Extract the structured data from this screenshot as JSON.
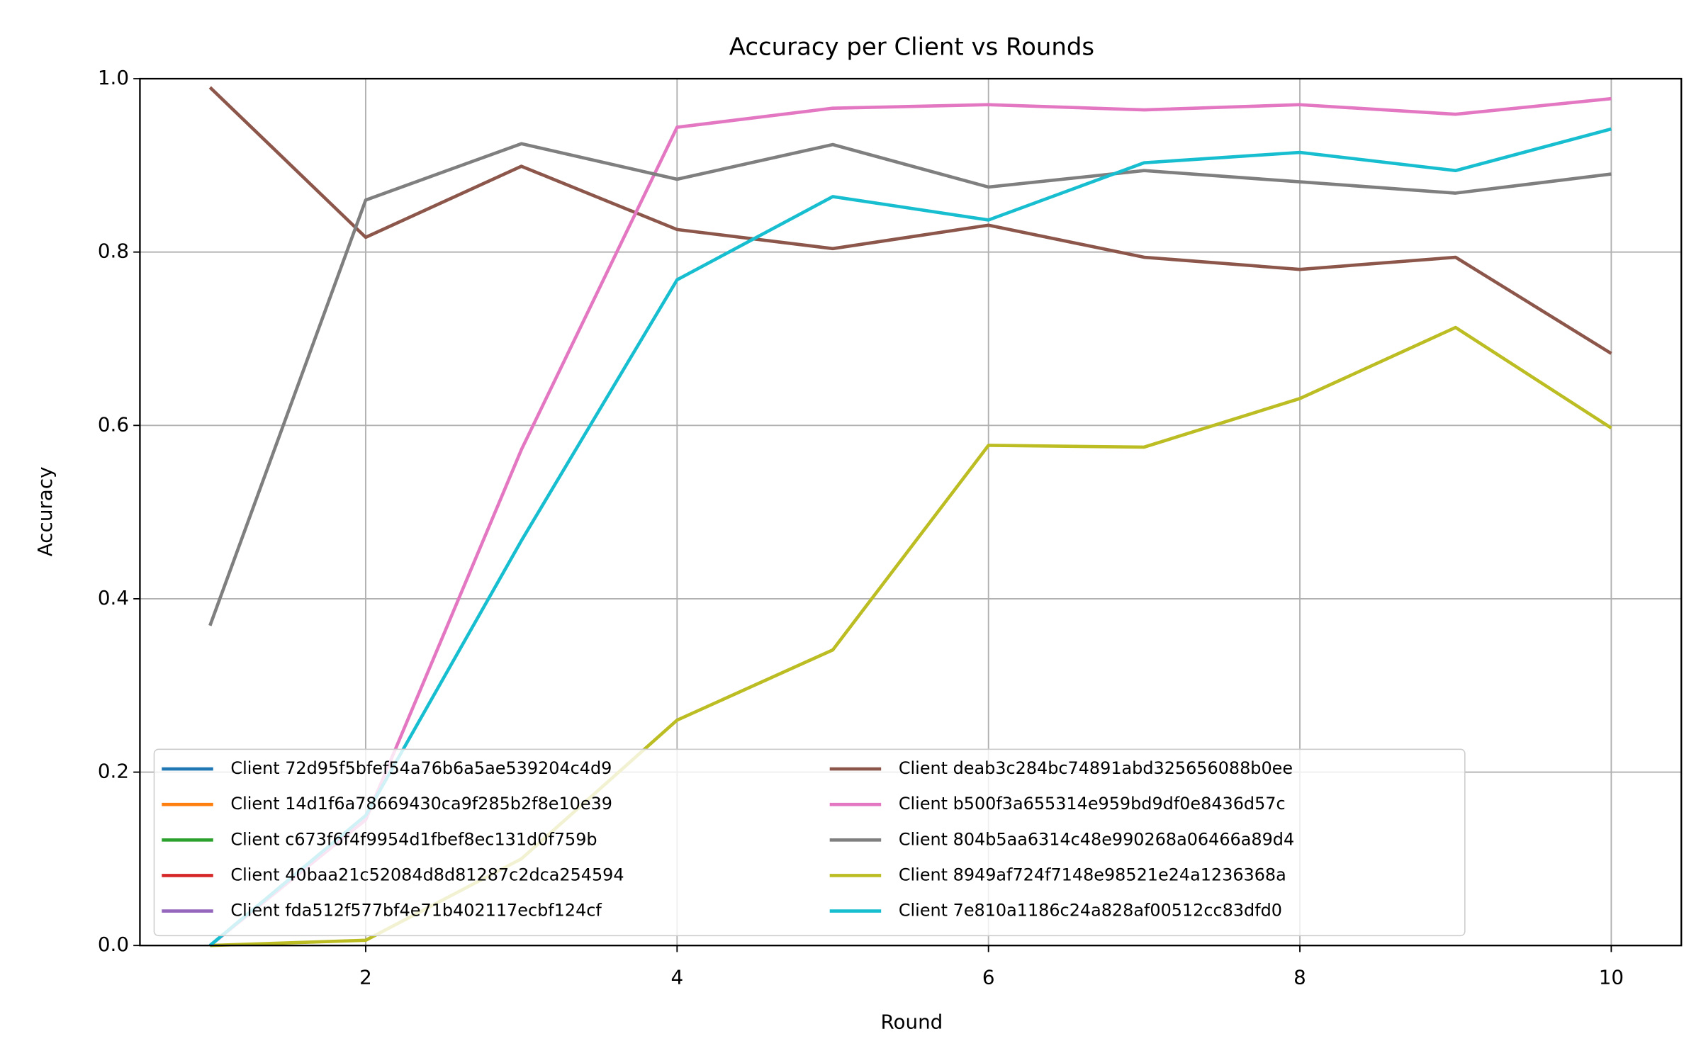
{
  "chart_data": {
    "type": "line",
    "title": "Accuracy per Client vs Rounds",
    "xlabel": "Round",
    "ylabel": "Accuracy",
    "x": [
      1,
      2,
      3,
      4,
      5,
      6,
      7,
      8,
      9,
      10
    ],
    "xlim": [
      0.55,
      10.45
    ],
    "xticks": [
      2,
      4,
      6,
      8,
      10
    ],
    "ylim": [
      0,
      1
    ],
    "yticks": [
      {
        "value": 0,
        "label": "0.0"
      },
      {
        "value": 0.2,
        "label": "0.2"
      },
      {
        "value": 0.4,
        "label": "0.4"
      },
      {
        "value": 0.6,
        "label": "0.6"
      },
      {
        "value": 0.8,
        "label": "0.8"
      },
      {
        "value": 1,
        "label": "1.0"
      }
    ],
    "grid": true,
    "legend": "lower left",
    "legend_columns": 2,
    "series": [
      {
        "name": "Client 72d95f5bfef54a76b6a5ae539204c4d9",
        "color": "#1f77b4",
        "values": [
          null,
          null,
          null,
          null,
          null,
          null,
          null,
          null,
          null,
          null
        ]
      },
      {
        "name": "Client 14d1f6a78669430ca9f285b2f8e10e39",
        "color": "#ff7f0e",
        "values": [
          null,
          null,
          null,
          null,
          null,
          null,
          null,
          null,
          null,
          null
        ]
      },
      {
        "name": "Client c673f6f4f9954d1fbef8ec131d0f759b",
        "color": "#2ca02c",
        "values": [
          null,
          null,
          null,
          null,
          null,
          null,
          null,
          null,
          null,
          null
        ]
      },
      {
        "name": "Client 40baa21c52084d8d81287c2dca254594",
        "color": "#d62728",
        "values": [
          null,
          null,
          null,
          null,
          null,
          null,
          null,
          null,
          null,
          null
        ]
      },
      {
        "name": "Client fda512f577bf4e71b402117ecbf124cf",
        "color": "#9467bd",
        "values": [
          null,
          null,
          null,
          null,
          null,
          null,
          null,
          null,
          null,
          null
        ]
      },
      {
        "name": "Client deab3c284bc74891abd325656088b0ee",
        "color": "#8c564b",
        "values": [
          0.99,
          0.817,
          0.899,
          0.826,
          0.804,
          0.831,
          0.794,
          0.78,
          0.794,
          0.683
        ]
      },
      {
        "name": "Client b500f3a655314e959bd9df0e8436d57c",
        "color": "#e377c2",
        "values": [
          0.0,
          0.145,
          0.572,
          0.944,
          0.966,
          0.97,
          0.964,
          0.97,
          0.959,
          0.977
        ]
      },
      {
        "name": "Client 804b5aa6314c48e990268a06466a89d4",
        "color": "#7f7f7f",
        "values": [
          0.369,
          0.86,
          0.925,
          0.884,
          0.924,
          0.875,
          0.894,
          0.881,
          0.868,
          0.89
        ]
      },
      {
        "name": "Client 8949af724f7148e98521e24a1236368a",
        "color": "#bcbd22",
        "values": [
          0.0,
          0.006,
          0.1,
          0.26,
          0.341,
          0.577,
          0.575,
          0.631,
          0.713,
          0.597
        ]
      },
      {
        "name": "Client 7e810a1186c24a828af00512cc83dfd0",
        "color": "#17becf",
        "values": [
          0.0,
          0.15,
          0.467,
          0.768,
          0.864,
          0.837,
          0.903,
          0.915,
          0.894,
          0.942
        ]
      }
    ]
  }
}
